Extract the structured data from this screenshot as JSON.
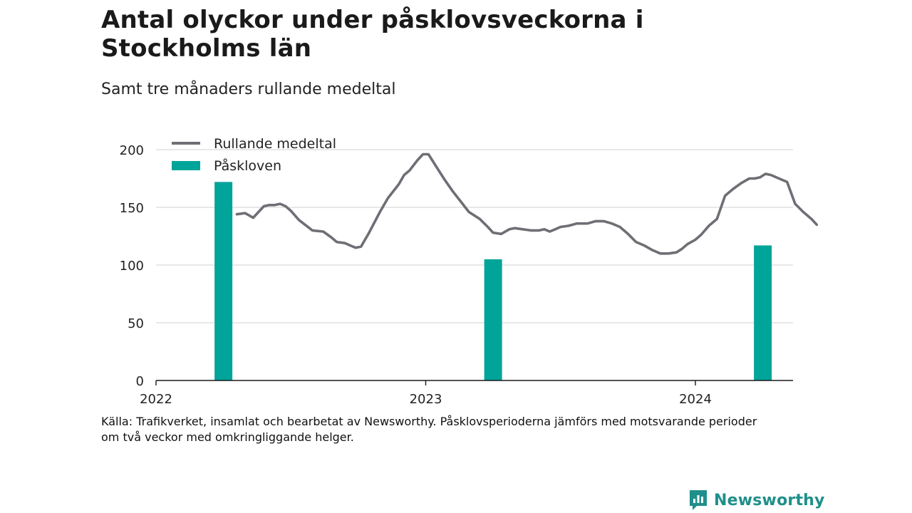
{
  "title": "Antal olyckor under påsklovsveckorna i Stockholms län",
  "subtitle": "Samt tre månaders rullande medeltal",
  "source_line1": "Källa: Trafikverket, insamlat och bearbetat av Newsworthy. Påsklovsperioderna jämförs med motsvarande perioder",
  "source_line2": "om två veckor med omkringliggande helger.",
  "brand": {
    "name": "Newsworthy",
    "icon": "newsworthy-logo-icon",
    "color": "#1f8f8a"
  },
  "colors": {
    "line": "#6f6e75",
    "bar": "#00a499",
    "grid": "#d9d9d9",
    "axis": "#1a1a1a"
  },
  "chart_data": {
    "type": "bar+line",
    "ylim": [
      0,
      200
    ],
    "yticks": [
      0,
      50,
      100,
      150,
      200
    ],
    "xticks": [
      "2022",
      "2023",
      "2024"
    ],
    "xlim_years": [
      2022.0,
      2024.36
    ],
    "grid": true,
    "legend_position": "top-left",
    "legend": [
      {
        "name": "Rullande medeltal",
        "kind": "line"
      },
      {
        "name": "Påskloven",
        "kind": "bar"
      }
    ],
    "series": [
      {
        "name": "Påskloven",
        "type": "bar",
        "points": [
          {
            "x": 2022.25,
            "y": 172
          },
          {
            "x": 2023.25,
            "y": 105
          },
          {
            "x": 2024.25,
            "y": 117
          }
        ]
      },
      {
        "name": "Rullande medeltal",
        "type": "line",
        "points": [
          [
            2022.3,
            144
          ],
          [
            2022.33,
            145
          ],
          [
            2022.36,
            141
          ],
          [
            2022.4,
            151
          ],
          [
            2022.42,
            152
          ],
          [
            2022.44,
            152
          ],
          [
            2022.46,
            153
          ],
          [
            2022.48,
            151
          ],
          [
            2022.5,
            147
          ],
          [
            2022.53,
            139
          ],
          [
            2022.58,
            130
          ],
          [
            2022.62,
            129
          ],
          [
            2022.65,
            124
          ],
          [
            2022.67,
            120
          ],
          [
            2022.7,
            119
          ],
          [
            2022.72,
            117
          ],
          [
            2022.74,
            115
          ],
          [
            2022.76,
            116
          ],
          [
            2022.79,
            128
          ],
          [
            2022.83,
            146
          ],
          [
            2022.86,
            158
          ],
          [
            2022.9,
            170
          ],
          [
            2022.92,
            178
          ],
          [
            2022.94,
            182
          ],
          [
            2022.97,
            191
          ],
          [
            2022.99,
            196
          ],
          [
            2023.01,
            196
          ],
          [
            2023.04,
            185
          ],
          [
            2023.07,
            174
          ],
          [
            2023.1,
            164
          ],
          [
            2023.13,
            155
          ],
          [
            2023.16,
            146
          ],
          [
            2023.2,
            140
          ],
          [
            2023.23,
            133
          ],
          [
            2023.25,
            128
          ],
          [
            2023.28,
            127
          ],
          [
            2023.31,
            131
          ],
          [
            2023.33,
            132
          ],
          [
            2023.36,
            131
          ],
          [
            2023.39,
            130
          ],
          [
            2023.42,
            130
          ],
          [
            2023.44,
            131
          ],
          [
            2023.46,
            129
          ],
          [
            2023.48,
            131
          ],
          [
            2023.5,
            133
          ],
          [
            2023.53,
            134
          ],
          [
            2023.56,
            136
          ],
          [
            2023.6,
            136
          ],
          [
            2023.63,
            138
          ],
          [
            2023.66,
            138
          ],
          [
            2023.69,
            136
          ],
          [
            2023.72,
            133
          ],
          [
            2023.75,
            127
          ],
          [
            2023.78,
            120
          ],
          [
            2023.81,
            117
          ],
          [
            2023.84,
            113
          ],
          [
            2023.87,
            110
          ],
          [
            2023.9,
            110
          ],
          [
            2023.93,
            111
          ],
          [
            2023.95,
            114
          ],
          [
            2023.97,
            118
          ],
          [
            2024.0,
            122
          ],
          [
            2024.02,
            126
          ],
          [
            2024.05,
            134
          ],
          [
            2024.08,
            140
          ],
          [
            2024.11,
            160
          ],
          [
            2024.14,
            166
          ],
          [
            2024.17,
            171
          ],
          [
            2024.2,
            175
          ],
          [
            2024.22,
            175
          ],
          [
            2024.24,
            176
          ],
          [
            2024.26,
            179
          ],
          [
            2024.28,
            178
          ],
          [
            2024.31,
            175
          ],
          [
            2024.34,
            172
          ],
          [
            2024.37,
            153
          ],
          [
            2024.4,
            146
          ],
          [
            2024.43,
            140
          ],
          [
            2024.45,
            135
          ]
        ]
      }
    ]
  }
}
